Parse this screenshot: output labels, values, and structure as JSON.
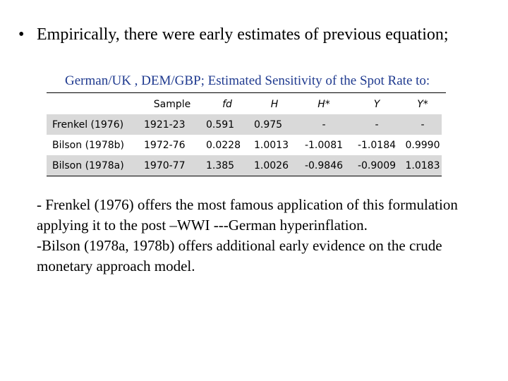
{
  "bullet": {
    "symbol": "•",
    "text": "Empirically, there were early estimates of previous equation;"
  },
  "table": {
    "caption": "German/UK , DEM/GBP; Estimated Sensitivity of the Spot Rate to:",
    "header": [
      "",
      "Sample",
      "fd",
      "H",
      "H*",
      "Y",
      "Y*"
    ],
    "rows": [
      [
        "Frenkel (1976)",
        "1921-23",
        "0.591",
        "0.975",
        "-",
        "-",
        "-"
      ],
      [
        "Bilson (1978b)",
        "1972-76",
        "0.0228",
        "1.0013",
        "-1.0081",
        "-1.0184",
        "0.9990"
      ],
      [
        "Bilson (1978a)",
        "1970-77",
        "1.385",
        "1.0026",
        "-0.9846",
        "-0.9009",
        "1.0183"
      ]
    ],
    "shade_color": "#d9d9d9"
  },
  "notes": {
    "lines": [
      "- Frenkel (1976) offers the most famous application of this formulation",
      "applying it to the post –WWI ---German hyperinflation.",
      "-Bilson (1978a, 1978b) offers additional early evidence on the crude",
      "monetary approach model."
    ]
  },
  "colors": {
    "caption": "#1f3a8f",
    "background": "#ffffff"
  }
}
